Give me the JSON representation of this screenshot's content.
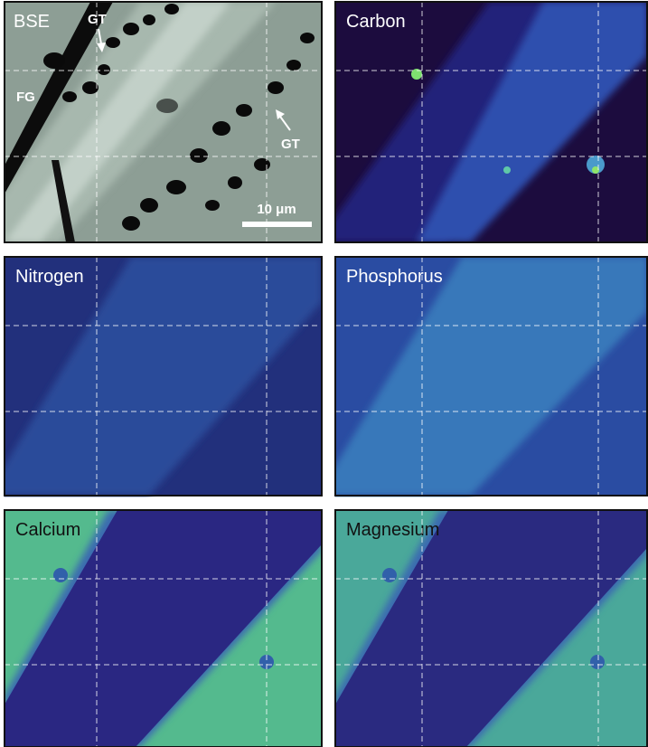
{
  "panels": [
    {
      "label": "BSE",
      "annotations": [
        "GT",
        "FG",
        "GT"
      ],
      "scale_bar": "10 μm"
    },
    {
      "label": "Carbon"
    },
    {
      "label": "Nitrogen"
    },
    {
      "label": "Phosphorus"
    },
    {
      "label": "Calcium"
    },
    {
      "label": "Magnesium"
    }
  ]
}
